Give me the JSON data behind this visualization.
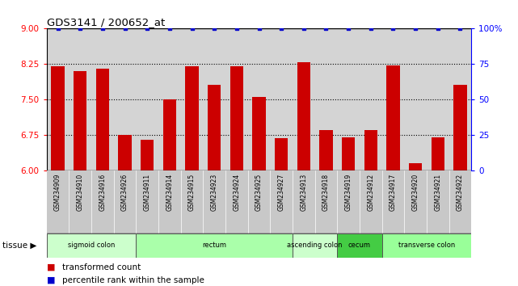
{
  "title": "GDS3141 / 200652_at",
  "samples": [
    "GSM234909",
    "GSM234910",
    "GSM234916",
    "GSM234926",
    "GSM234911",
    "GSM234914",
    "GSM234915",
    "GSM234923",
    "GSM234924",
    "GSM234925",
    "GSM234927",
    "GSM234913",
    "GSM234918",
    "GSM234919",
    "GSM234912",
    "GSM234917",
    "GSM234920",
    "GSM234921",
    "GSM234922"
  ],
  "bar_values": [
    8.2,
    8.1,
    8.15,
    6.75,
    6.65,
    7.5,
    8.2,
    7.8,
    8.2,
    7.55,
    6.68,
    8.28,
    6.85,
    6.7,
    6.85,
    8.22,
    6.15,
    6.7,
    7.8
  ],
  "percentile_values": [
    100,
    100,
    100,
    100,
    100,
    100,
    100,
    100,
    100,
    100,
    100,
    100,
    100,
    100,
    100,
    100,
    100,
    100,
    100
  ],
  "bar_color": "#cc0000",
  "percentile_color": "#0000cc",
  "ylim_left": [
    6,
    9
  ],
  "ylim_right": [
    0,
    100
  ],
  "yticks_left": [
    6,
    6.75,
    7.5,
    8.25,
    9
  ],
  "yticks_right": [
    0,
    25,
    50,
    75,
    100
  ],
  "dotted_lines": [
    6.75,
    7.5,
    8.25
  ],
  "tissue_groups": [
    {
      "label": "sigmoid colon",
      "start": 0,
      "end": 4,
      "color": "#ccffcc"
    },
    {
      "label": "rectum",
      "start": 4,
      "end": 11,
      "color": "#aaffaa"
    },
    {
      "label": "ascending colon",
      "start": 11,
      "end": 13,
      "color": "#ccffcc"
    },
    {
      "label": "cecum",
      "start": 13,
      "end": 15,
      "color": "#44cc44"
    },
    {
      "label": "transverse colon",
      "start": 15,
      "end": 19,
      "color": "#99ff99"
    }
  ],
  "legend_bar_label": "transformed count",
  "legend_pct_label": "percentile rank within the sample",
  "tissue_label": "tissue",
  "plot_bg_color": "#d4d4d4",
  "label_bg_color": "#c8c8c8",
  "fig_bg_color": "#ffffff"
}
